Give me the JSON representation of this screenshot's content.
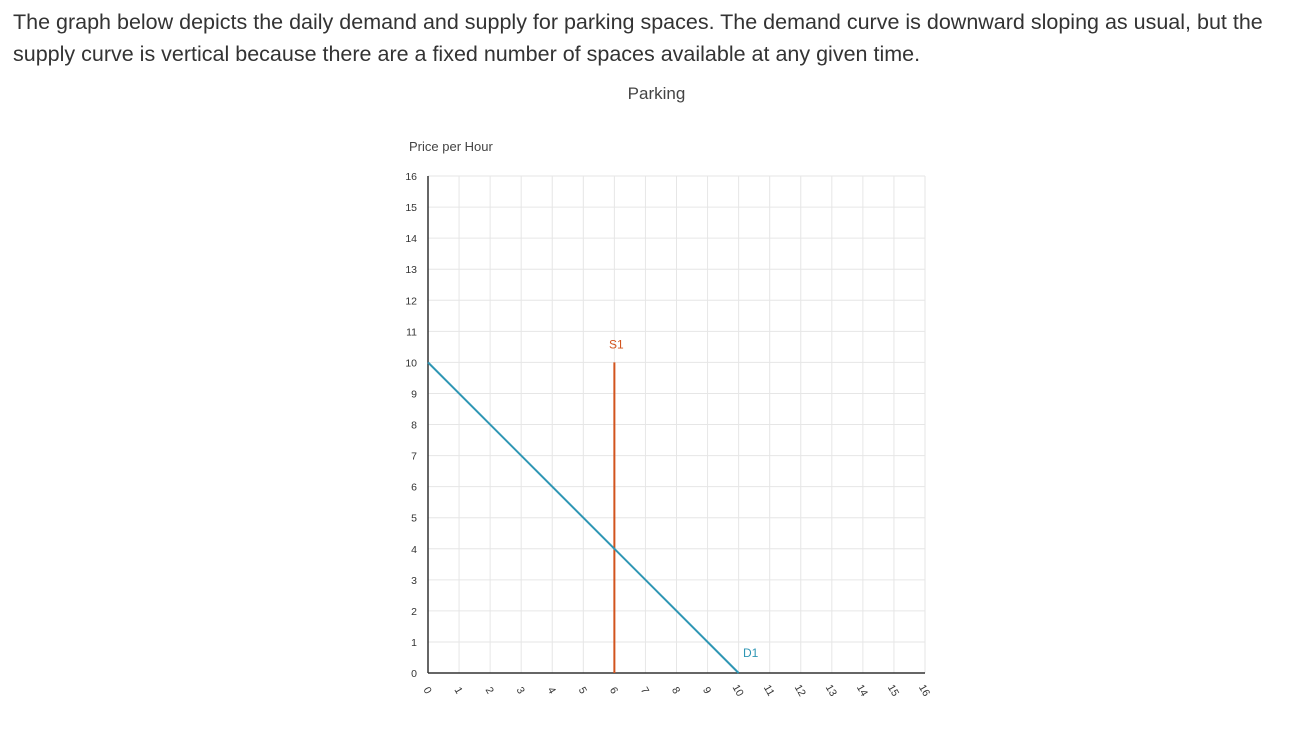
{
  "intro_text": "The graph below depicts the daily demand and supply for parking spaces. The demand curve is downward sloping as usual, but the supply curve is vertical because there are a fixed number of spaces available at any given time.",
  "chart_data": {
    "type": "line",
    "title": "Parking",
    "ylabel": "Price per Hour",
    "xlabel": "",
    "xlim": [
      0,
      16
    ],
    "ylim": [
      0,
      16
    ],
    "x_ticks": [
      "0",
      "1",
      "2",
      "3",
      "4",
      "5",
      "6",
      "7",
      "8",
      "9",
      "10",
      "11",
      "12",
      "13",
      "14",
      "15",
      "16"
    ],
    "y_ticks": [
      "0",
      "1",
      "2",
      "3",
      "4",
      "5",
      "6",
      "7",
      "8",
      "9",
      "10",
      "11",
      "12",
      "13",
      "14",
      "15",
      "16"
    ],
    "grid": true,
    "series": [
      {
        "name": "S1",
        "color": "#d2541e",
        "points": [
          [
            6,
            0
          ],
          [
            6,
            10
          ]
        ]
      },
      {
        "name": "D1",
        "color": "#2e96b4",
        "points": [
          [
            0,
            10
          ],
          [
            10,
            0
          ]
        ]
      }
    ]
  }
}
